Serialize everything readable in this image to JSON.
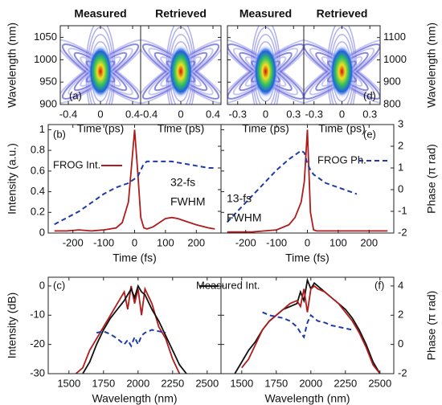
{
  "chart_data": [
    {
      "type": "image",
      "panel_label": "(a)",
      "titles": [
        "Measured",
        "Retrieved"
      ],
      "xlabel": "Time (ps)",
      "ylabel": "Wavelength (nm)",
      "xlim": [
        -0.5,
        0.5
      ],
      "xticks": [
        -0.4,
        0,
        0.4
      ],
      "ylim": [
        900,
        1076
      ],
      "yticks": [
        900,
        950,
        1000,
        1050
      ]
    },
    {
      "type": "image",
      "panel_label": "(d)",
      "titles": [
        "Measured",
        "Retrieved"
      ],
      "xlabel": "Time (ps)",
      "ylabel": "Wavelength (nm)",
      "xlim": [
        -0.41,
        0.41
      ],
      "xticks": [
        -0.3,
        0,
        0.3
      ],
      "ylim": [
        800,
        1153
      ],
      "yticks": [
        800,
        900,
        1000,
        1100
      ]
    },
    {
      "type": "line",
      "panel_label": "(b)",
      "xlabel": "Time (fs)",
      "ylabel": "Intensity (a.u.)",
      "annotations": [
        "32-fs",
        "FWHM"
      ],
      "xlim": [
        -280,
        280
      ],
      "xticks": [
        -200,
        -100,
        0,
        100,
        200
      ],
      "ylim": [
        0,
        1.05
      ],
      "yticks": [
        0,
        0.2,
        0.4,
        0.6,
        0.8,
        1
      ],
      "y2lim": [
        -2,
        3
      ],
      "y2ticks": [
        -2,
        -1,
        0,
        1,
        2,
        3
      ],
      "x": [
        -260,
        -220,
        -180,
        -140,
        -100,
        -60,
        -40,
        -20,
        -10,
        0,
        10,
        20,
        30,
        40,
        60,
        80,
        100,
        120,
        140,
        160,
        200,
        240,
        260
      ],
      "series": [
        {
          "name": "FROG Int.",
          "color": "#b01c1c",
          "dashed": false,
          "values": [
            0.02,
            0.02,
            0.03,
            0.02,
            0.03,
            0.05,
            0.1,
            0.3,
            0.65,
            1,
            0.6,
            0.15,
            0.05,
            0.04,
            0.06,
            0.1,
            0.14,
            0.15,
            0.14,
            0.12,
            0.08,
            0.05,
            0.04
          ]
        },
        {
          "color": "#1f3ba8",
          "dashed": true,
          "axis": "y2",
          "values": [
            -1.6,
            -1.3,
            -1,
            -0.6,
            -0.2,
            0.1,
            0.2,
            0.3,
            0.4,
            0.5,
            0.6,
            0.9,
            1.2,
            1.3,
            1.3,
            1.3,
            1.3,
            1.3,
            1.25,
            1.2,
            1.1,
            1.0,
            1.0
          ]
        }
      ]
    },
    {
      "type": "line",
      "panel_label": "(e)",
      "xlabel": "Time (fs)",
      "y2label": "Phase (π rad)",
      "annotations": [
        "13-fs",
        "FWHM"
      ],
      "xlim": [
        -280,
        280
      ],
      "xticks": [
        -200,
        -100,
        0,
        100,
        200
      ],
      "ylim": [
        0,
        1.05
      ],
      "yticks": [
        0,
        0.2,
        0.4,
        0.6,
        0.8,
        1
      ],
      "y2lim": [
        -2,
        3
      ],
      "y2ticks": [
        -2,
        -1,
        0,
        1,
        2,
        3
      ],
      "x": [
        -260,
        -220,
        -180,
        -140,
        -100,
        -60,
        -40,
        -20,
        -10,
        0,
        10,
        20,
        30,
        40,
        60,
        80,
        100,
        120,
        140,
        160,
        200,
        240,
        260
      ],
      "series": [
        {
          "color": "#b01c1c",
          "dashed": false,
          "values": [
            0.01,
            0.01,
            0.01,
            0.02,
            0.03,
            0.08,
            0.15,
            0.3,
            0.5,
            1,
            0.2,
            0.03,
            0.02,
            0.02,
            0.02,
            0.02,
            0.02,
            0.02,
            0.02,
            0.02,
            0.02,
            0.02,
            0.02
          ]
        },
        {
          "name": "FROG Ph.",
          "color": "#1f3ba8",
          "dashed": true,
          "axis": "y2",
          "values": [
            -1.5,
            -0.9,
            -0.3,
            0.3,
            0.9,
            1.4,
            1.6,
            1.8,
            1.7,
            1.2,
            0.9,
            0.7,
            0.6,
            0.5,
            0.3,
            0.2,
            0.1,
            0,
            -0.1,
            -0.2,
            null,
            null,
            null
          ]
        }
      ]
    },
    {
      "type": "line",
      "panel_label": "(c)",
      "xlabel": "Wavelength (nm)",
      "ylabel": "Intensity (dB)",
      "xlim": [
        1350,
        2600
      ],
      "xticks": [
        1500,
        1750,
        2000,
        2250,
        2500
      ],
      "ylim": [
        -30,
        3
      ],
      "yticks": [
        -30,
        -20,
        -10,
        0
      ],
      "y2lim": [
        -2,
        4.6
      ],
      "y2ticks": [
        -2,
        0,
        2,
        4
      ],
      "x": [
        1500,
        1550,
        1600,
        1650,
        1700,
        1750,
        1800,
        1850,
        1900,
        1925,
        1950,
        1975,
        2000,
        2025,
        2050,
        2100,
        2150,
        2200,
        2250,
        2300,
        2350,
        2400
      ],
      "series": [
        {
          "color": "#b01c1c",
          "dashed": false,
          "values": [
            null,
            -30,
            -28,
            -22,
            -18,
            -14,
            -10,
            -6,
            -2,
            -8,
            0,
            -6,
            -1,
            -10,
            -1,
            -6,
            -14,
            -18,
            -25,
            -30,
            null,
            null
          ]
        },
        {
          "name": "Measured Int.",
          "color": "#111111",
          "dashed": false,
          "values": [
            null,
            null,
            -30,
            -26,
            -20,
            -15,
            -11,
            -8,
            -5,
            -3,
            -1,
            -4,
            0,
            -2,
            -3,
            -8,
            -12,
            -17,
            -22,
            -27,
            -30,
            null
          ]
        },
        {
          "color": "#1f3ba8",
          "dashed": true,
          "axis": "y2",
          "values": [
            null,
            null,
            null,
            null,
            0.8,
            0.9,
            0.7,
            0.4,
            0,
            0.3,
            -0.1,
            0.5,
            0,
            0.6,
            0.8,
            1.0,
            0.9,
            0.8,
            null,
            null,
            null,
            null
          ]
        }
      ]
    },
    {
      "type": "line",
      "panel_label": "(f)",
      "xlabel": "Wavelength (nm)",
      "y2label": "Phase (π rad)",
      "xlim": [
        1350,
        2600
      ],
      "xticks": [
        1500,
        1750,
        2000,
        2250,
        2500
      ],
      "ylim": [
        -30,
        3
      ],
      "yticks": [
        -30,
        -20,
        -10,
        0
      ],
      "y2lim": [
        -2,
        4.6
      ],
      "y2ticks": [
        -2,
        0,
        2,
        4
      ],
      "x": [
        1450,
        1500,
        1550,
        1600,
        1650,
        1700,
        1750,
        1800,
        1850,
        1900,
        1925,
        1950,
        1975,
        2000,
        2025,
        2050,
        2100,
        2150,
        2200,
        2250,
        2300,
        2350,
        2400,
        2450,
        2500
      ],
      "series": [
        {
          "color": "#111111",
          "dashed": false,
          "values": [
            -30,
            -26,
            -22,
            -19,
            -15,
            -12,
            -10,
            -8,
            -7,
            -6,
            -2,
            -5,
            2,
            -1,
            1,
            0,
            -2,
            -4,
            -6,
            -8,
            -11,
            -15,
            -20,
            -26,
            -30
          ]
        },
        {
          "color": "#b01c1c",
          "dashed": false,
          "values": [
            null,
            -28,
            -25,
            -20,
            -15,
            -12,
            -10,
            -8,
            -6,
            -5,
            -7,
            -1,
            -9,
            -1,
            0,
            -1,
            -2,
            -4,
            -6,
            -9,
            -12,
            -16,
            -21,
            -27,
            -30
          ]
        },
        {
          "color": "#1f3ba8",
          "dashed": true,
          "axis": "y2",
          "values": [
            null,
            null,
            null,
            null,
            2.2,
            2.0,
            1.9,
            1.8,
            1.6,
            1.2,
            0.8,
            0.5,
            1.5,
            2.0,
            1.8,
            1.6,
            1.5,
            1.3,
            1.2,
            1.1,
            1.0,
            null,
            null,
            null,
            null
          ]
        }
      ]
    }
  ]
}
